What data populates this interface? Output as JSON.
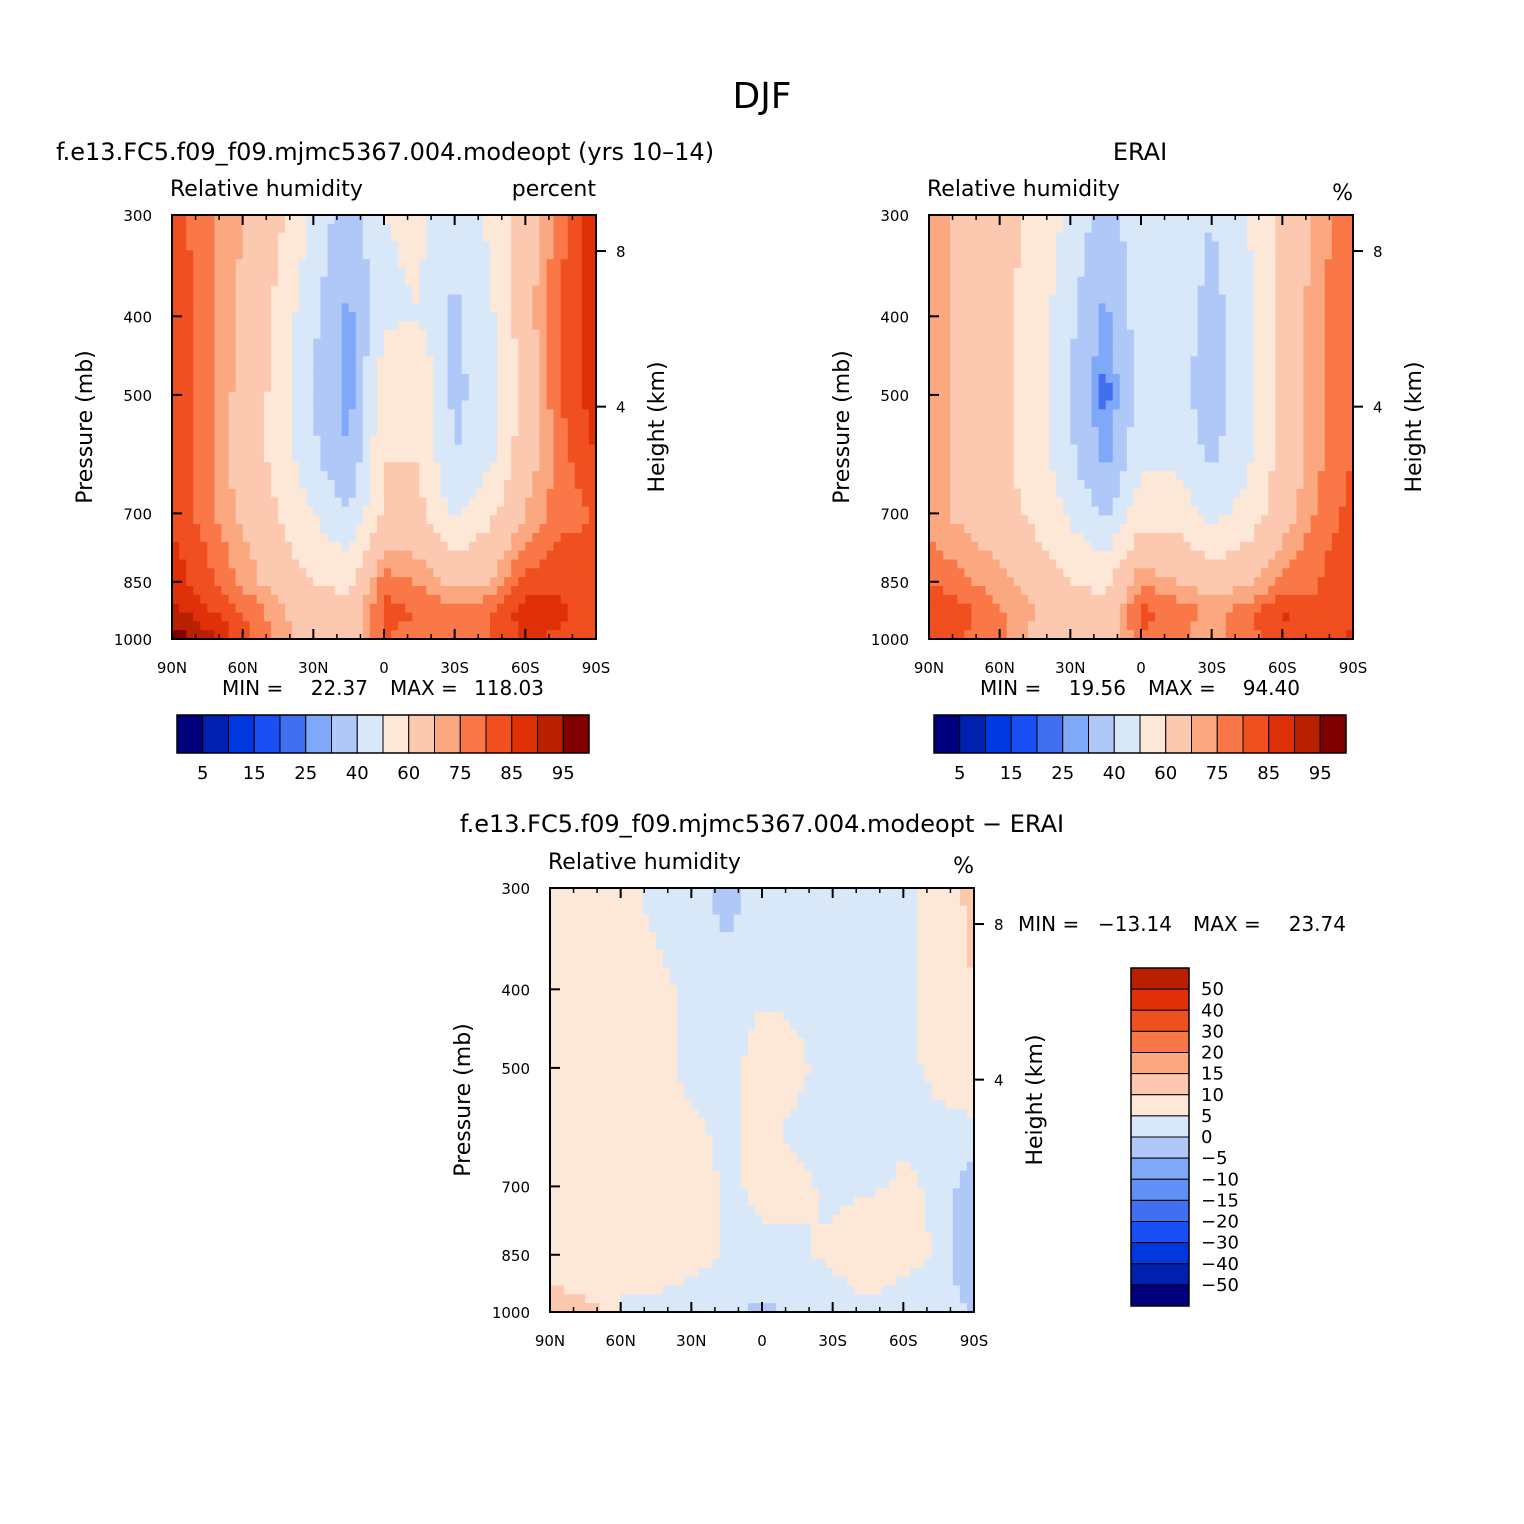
{
  "figure_title": "DJF",
  "chart_data": [
    {
      "type": "heatmap",
      "title": "f.e13.FC5.f09_f09.mjmc5367.004.modeopt (yrs 10–14)",
      "left_label": "Relative humidity",
      "right_label": "percent",
      "xlabel": "",
      "ylabel": "Pressure (mb)",
      "ylabel_right": "Height (km)",
      "x_ticks": [
        "90N",
        "60N",
        "30N",
        "0",
        "30S",
        "60S",
        "90S"
      ],
      "y_ticks": [
        "300",
        "400",
        "500",
        "700",
        "850",
        "1000"
      ],
      "y_right_ticks": [
        "8",
        "4"
      ],
      "x": [
        "90N",
        "75N",
        "60N",
        "45N",
        "30N",
        "15N",
        "0",
        "15S",
        "30S",
        "45S",
        "60S",
        "75S",
        "90S"
      ],
      "y": [
        300,
        400,
        500,
        600,
        700,
        850,
        925,
        1000
      ],
      "z": [
        [
          82,
          77,
          70,
          62,
          48,
          33,
          50,
          52,
          42,
          52,
          66,
          78,
          90
        ],
        [
          84,
          78,
          68,
          58,
          42,
          28,
          48,
          50,
          38,
          48,
          66,
          80,
          90
        ],
        [
          84,
          77,
          67,
          57,
          40,
          26,
          58,
          60,
          37,
          46,
          64,
          80,
          88
        ],
        [
          84,
          76,
          66,
          57,
          42,
          30,
          60,
          60,
          40,
          48,
          66,
          78,
          85
        ],
        [
          84,
          77,
          68,
          60,
          50,
          40,
          62,
          62,
          48,
          58,
          70,
          78,
          80
        ],
        [
          88,
          82,
          74,
          66,
          60,
          58,
          78,
          74,
          68,
          70,
          82,
          84,
          82
        ],
        [
          92,
          86,
          80,
          72,
          64,
          62,
          82,
          80,
          76,
          80,
          88,
          86,
          80
        ],
        [
          98,
          92,
          82,
          74,
          66,
          64,
          80,
          78,
          76,
          80,
          86,
          84,
          80
        ]
      ],
      "min_label": "MIN =",
      "min_value": "22.37",
      "max_label": "MAX =",
      "max_value": "118.03",
      "colorbar_labels": [
        "5",
        "15",
        "25",
        "40",
        "60",
        "75",
        "85",
        "95"
      ]
    },
    {
      "type": "heatmap",
      "title": "ERAI",
      "left_label": "Relative humidity",
      "right_label": "%",
      "xlabel": "",
      "ylabel": "Pressure (mb)",
      "ylabel_right": "Height (km)",
      "x_ticks": [
        "90N",
        "60N",
        "30N",
        "0",
        "30S",
        "60S",
        "90S"
      ],
      "y_ticks": [
        "300",
        "400",
        "500",
        "700",
        "850",
        "1000"
      ],
      "y_right_ticks": [
        "8",
        "4"
      ],
      "x": [
        "90N",
        "75N",
        "60N",
        "45N",
        "30N",
        "15N",
        "0",
        "15S",
        "30S",
        "45S",
        "60S",
        "75S",
        "90S"
      ],
      "y": [
        300,
        400,
        500,
        600,
        700,
        850,
        925,
        1000
      ],
      "z": [
        [
          72,
          68,
          64,
          58,
          48,
          34,
          48,
          48,
          40,
          50,
          62,
          72,
          80
        ],
        [
          74,
          68,
          62,
          56,
          42,
          28,
          46,
          46,
          36,
          46,
          62,
          74,
          80
        ],
        [
          74,
          68,
          62,
          56,
          40,
          22,
          44,
          44,
          34,
          46,
          62,
          74,
          80
        ],
        [
          72,
          68,
          62,
          56,
          42,
          28,
          48,
          48,
          38,
          48,
          64,
          74,
          80
        ],
        [
          72,
          68,
          64,
          58,
          48,
          38,
          56,
          56,
          46,
          54,
          66,
          76,
          82
        ],
        [
          80,
          76,
          72,
          66,
          60,
          58,
          74,
          70,
          66,
          68,
          76,
          80,
          85
        ],
        [
          84,
          82,
          76,
          70,
          64,
          62,
          82,
          78,
          74,
          78,
          86,
          80,
          85
        ],
        [
          84,
          80,
          76,
          68,
          62,
          62,
          80,
          76,
          72,
          78,
          84,
          80,
          86
        ]
      ],
      "min_label": "MIN =",
      "min_value": "19.56",
      "max_label": "MAX =",
      "max_value": "94.40",
      "colorbar_labels": [
        "5",
        "15",
        "25",
        "40",
        "60",
        "75",
        "85",
        "95"
      ]
    },
    {
      "type": "heatmap",
      "title": "f.e13.FC5.f09_f09.mjmc5367.004.modeopt − ERAI",
      "left_label": "Relative humidity",
      "right_label": "%",
      "xlabel": "",
      "ylabel": "Pressure (mb)",
      "ylabel_right": "Height (km)",
      "x_ticks": [
        "90N",
        "60N",
        "30N",
        "0",
        "30S",
        "60S",
        "90S"
      ],
      "y_ticks": [
        "300",
        "400",
        "500",
        "700",
        "850",
        "1000"
      ],
      "y_right_ticks": [
        "8",
        "4"
      ],
      "x": [
        "90N",
        "75N",
        "60N",
        "45N",
        "30N",
        "15N",
        "0",
        "15S",
        "30S",
        "45S",
        "60S",
        "75S",
        "90S"
      ],
      "y": [
        300,
        400,
        500,
        600,
        700,
        850,
        925,
        1000
      ],
      "z": [
        [
          10,
          8,
          6,
          4,
          2,
          -2,
          2,
          4,
          2,
          2,
          4,
          6,
          12
        ],
        [
          10,
          8,
          6,
          6,
          4,
          2,
          4,
          4,
          2,
          2,
          4,
          6,
          10
        ],
        [
          10,
          8,
          6,
          6,
          4,
          3,
          8,
          6,
          3,
          2,
          4,
          6,
          8
        ],
        [
          10,
          8,
          6,
          6,
          6,
          4,
          6,
          4,
          4,
          2,
          4,
          4,
          4
        ],
        [
          10,
          8,
          6,
          10,
          8,
          4,
          6,
          6,
          4,
          4,
          6,
          4,
          -4
        ],
        [
          8,
          6,
          6,
          10,
          8,
          4,
          4,
          4,
          6,
          10,
          8,
          4,
          -6
        ],
        [
          10,
          6,
          6,
          6,
          4,
          2,
          2,
          2,
          4,
          6,
          4,
          2,
          -2
        ],
        [
          16,
          14,
          4,
          2,
          2,
          2,
          -2,
          2,
          2,
          4,
          4,
          2,
          0
        ]
      ],
      "min_label": "MIN =",
      "min_value": "−13.14",
      "max_label": "MAX =",
      "max_value": "23.74",
      "colorbar_labels": [
        "50",
        "40",
        "30",
        "20",
        "15",
        "10",
        "5",
        "0",
        "−5",
        "−10",
        "−15",
        "−20",
        "−30",
        "−40",
        "−50"
      ]
    }
  ],
  "colors": {
    "abs_scale": [
      "#00007f",
      "#0020b0",
      "#0038e0",
      "#1a4ff5",
      "#4070f0",
      "#80a8f8",
      "#b0c8f8",
      "#d8e8f8",
      "#fde8d8",
      "#fcc8b0",
      "#fba880",
      "#fa7848",
      "#f04f20",
      "#e03008",
      "#b82000",
      "#800000"
    ],
    "diff_scale": [
      "#00007f",
      "#0020b0",
      "#0038e0",
      "#1a4ff5",
      "#4070f0",
      "#6090f5",
      "#80a8f8",
      "#b0c8f8",
      "#d8e8f8",
      "#fde8d8",
      "#fcc8b0",
      "#fba880",
      "#fa7848",
      "#f04f20",
      "#e03008",
      "#b82000",
      "#800000"
    ]
  }
}
